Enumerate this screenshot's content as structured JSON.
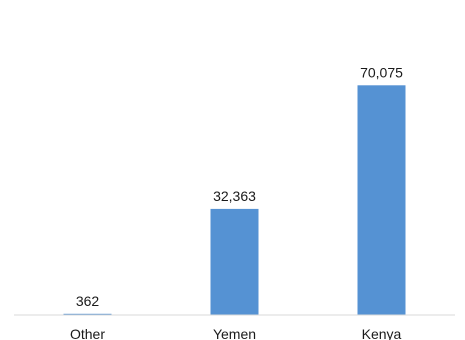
{
  "chart_data": {
    "type": "bar",
    "categories": [
      "Other",
      "Yemen",
      "Kenya"
    ],
    "values": [
      362,
      32363,
      70075
    ],
    "data_labels": [
      "362",
      "32,363",
      "70,075"
    ],
    "title": "",
    "xlabel": "",
    "ylabel": "",
    "ylim": [
      0,
      90000
    ],
    "grid": false,
    "legend": "none",
    "colors": {
      "bar": "#5592D3",
      "axis": "#D9D9D9",
      "text": "#1A1A1A"
    }
  }
}
